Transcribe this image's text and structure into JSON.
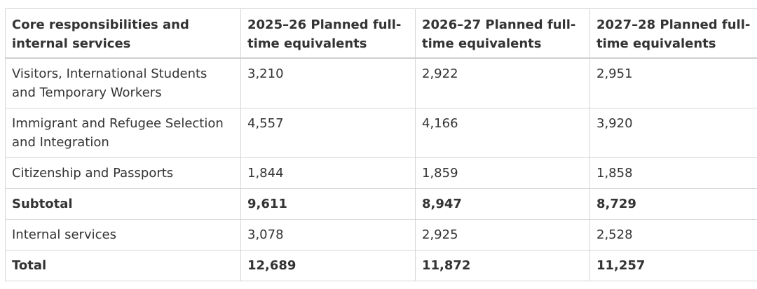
{
  "table": {
    "headers": [
      "Core responsibilities and internal services",
      "2025–26 Planned full-time equivalents",
      "2026–27 Planned full-time equivalents",
      "2027–28 Planned full-time equivalents"
    ],
    "rows": [
      {
        "label": "Visitors, International Students and Temporary Workers",
        "values": [
          "3,210",
          "2,922",
          "2,951"
        ],
        "bold": false
      },
      {
        "label": "Immigrant and Refugee Selection and Integration",
        "values": [
          "4,557",
          "4,166",
          "3,920"
        ],
        "bold": false
      },
      {
        "label": "Citizenship and Passports",
        "values": [
          "1,844",
          "1,859",
          "1,858"
        ],
        "bold": false
      },
      {
        "label": "Subtotal",
        "values": [
          "9,611",
          "8,947",
          "8,729"
        ],
        "bold": true
      },
      {
        "label": "Internal services",
        "values": [
          "3,078",
          "2,925",
          "2,528"
        ],
        "bold": false
      },
      {
        "label": "Total",
        "values": [
          "12,689",
          "11,872",
          "11,257"
        ],
        "bold": true
      }
    ]
  }
}
